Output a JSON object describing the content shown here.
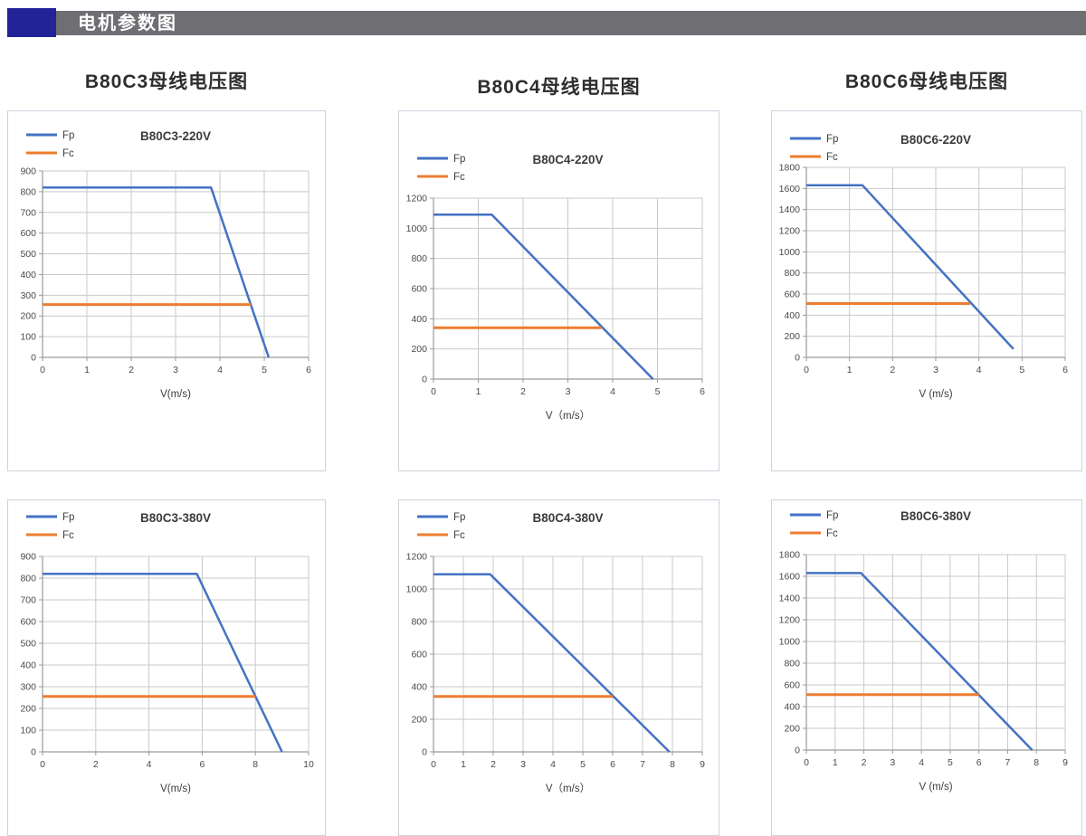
{
  "header": {
    "title": "电机参数图",
    "accent_color": "#232398",
    "bar_color": "#6e6e73",
    "title_color": "#ffffff"
  },
  "columns": [
    {
      "title": "B80C3母线电压图"
    },
    {
      "title": "B80C4母线电压图"
    },
    {
      "title": "B80C6母线电压图"
    }
  ],
  "chart_colors": {
    "fp": "#4472c4",
    "fc": "#ed7d31",
    "grid": "#c9c9c9",
    "axis": "#9a9a9a",
    "tick_text": "#4a4a4a",
    "title_text": "#3c3c3c"
  },
  "chart_data": [
    {
      "type": "line",
      "title": "B80C3-220V",
      "xlabel": "V(m/s)",
      "xlim": [
        0,
        6
      ],
      "xticks": [
        0,
        1,
        2,
        3,
        4,
        5,
        6
      ],
      "ylim": [
        0,
        900
      ],
      "yticks": [
        0,
        100,
        200,
        300,
        400,
        500,
        600,
        700,
        800,
        900
      ],
      "grid": true,
      "legend_position": "top-left",
      "legend": [
        "Fp",
        "Fc"
      ],
      "series": [
        {
          "name": "Fp",
          "color": "#4472c4",
          "points": [
            [
              0,
              820
            ],
            [
              3.8,
              820
            ],
            [
              5.1,
              0
            ]
          ]
        },
        {
          "name": "Fc",
          "color": "#ed7d31",
          "points": [
            [
              0,
              255
            ],
            [
              4.7,
              255
            ]
          ]
        }
      ]
    },
    {
      "type": "line",
      "title": "B80C4-220V",
      "xlabel": "V（m/s）",
      "xlim": [
        0,
        6
      ],
      "xticks": [
        0,
        1,
        2,
        3,
        4,
        5,
        6
      ],
      "ylim": [
        0,
        1200
      ],
      "yticks": [
        0,
        200,
        400,
        600,
        800,
        1000,
        1200
      ],
      "grid": true,
      "legend_position": "top-left",
      "legend": [
        "Fp",
        "Fc"
      ],
      "series": [
        {
          "name": "Fp",
          "color": "#4472c4",
          "points": [
            [
              0,
              1090
            ],
            [
              1.3,
              1090
            ],
            [
              4.9,
              0
            ]
          ]
        },
        {
          "name": "Fc",
          "color": "#ed7d31",
          "points": [
            [
              0,
              340
            ],
            [
              3.75,
              340
            ]
          ]
        }
      ]
    },
    {
      "type": "line",
      "title": "B80C6-220V",
      "xlabel": "V (m/s)",
      "xlim": [
        0,
        6
      ],
      "xticks": [
        0,
        1,
        2,
        3,
        4,
        5,
        6
      ],
      "ylim": [
        0,
        1800
      ],
      "yticks": [
        0,
        200,
        400,
        600,
        800,
        1000,
        1200,
        1400,
        1600,
        1800
      ],
      "grid": true,
      "legend_position": "top-left",
      "legend": [
        "Fp",
        "Fc"
      ],
      "series": [
        {
          "name": "Fp",
          "color": "#4472c4",
          "points": [
            [
              0,
              1630
            ],
            [
              1.3,
              1630
            ],
            [
              4.8,
              80
            ]
          ]
        },
        {
          "name": "Fc",
          "color": "#ed7d31",
          "points": [
            [
              0,
              510
            ],
            [
              3.8,
              510
            ]
          ]
        }
      ]
    },
    {
      "type": "line",
      "title": "B80C3-380V",
      "xlabel": "V(m/s)",
      "xlim": [
        0,
        10
      ],
      "xticks": [
        0,
        2,
        4,
        6,
        8,
        10
      ],
      "ylim": [
        0,
        900
      ],
      "yticks": [
        0,
        100,
        200,
        300,
        400,
        500,
        600,
        700,
        800,
        900
      ],
      "grid": true,
      "legend_position": "top-left",
      "legend": [
        "Fp",
        "Fc"
      ],
      "series": [
        {
          "name": "Fp",
          "color": "#4472c4",
          "points": [
            [
              0,
              820
            ],
            [
              5.8,
              820
            ],
            [
              9,
              0
            ]
          ]
        },
        {
          "name": "Fc",
          "color": "#ed7d31",
          "points": [
            [
              0,
              255
            ],
            [
              8,
              255
            ]
          ]
        }
      ]
    },
    {
      "type": "line",
      "title": "B80C4-380V",
      "xlabel": "V（m/s）",
      "xlim": [
        0,
        9
      ],
      "xticks": [
        0,
        1,
        2,
        3,
        4,
        5,
        6,
        7,
        8,
        9
      ],
      "ylim": [
        0,
        1200
      ],
      "yticks": [
        0,
        200,
        400,
        600,
        800,
        1000,
        1200
      ],
      "grid": true,
      "legend_position": "top-left",
      "legend": [
        "Fp",
        "Fc"
      ],
      "series": [
        {
          "name": "Fp",
          "color": "#4472c4",
          "points": [
            [
              0,
              1090
            ],
            [
              1.9,
              1090
            ],
            [
              7.9,
              0
            ]
          ]
        },
        {
          "name": "Fc",
          "color": "#ed7d31",
          "points": [
            [
              0,
              340
            ],
            [
              6,
              340
            ]
          ]
        }
      ]
    },
    {
      "type": "line",
      "title": "B80C6-380V",
      "xlabel": "V (m/s)",
      "xlim": [
        0,
        9
      ],
      "xticks": [
        0,
        1,
        2,
        3,
        4,
        5,
        6,
        7,
        8,
        9
      ],
      "ylim": [
        0,
        1800
      ],
      "yticks": [
        0,
        200,
        400,
        600,
        800,
        1000,
        1200,
        1400,
        1600,
        1800
      ],
      "grid": true,
      "legend_position": "top-left",
      "legend": [
        "Fp",
        "Fc"
      ],
      "series": [
        {
          "name": "Fp",
          "color": "#4472c4",
          "points": [
            [
              0,
              1630
            ],
            [
              1.9,
              1630
            ],
            [
              7.85,
              0
            ]
          ]
        },
        {
          "name": "Fc",
          "color": "#ed7d31",
          "points": [
            [
              0,
              510
            ],
            [
              6,
              510
            ]
          ]
        }
      ]
    }
  ]
}
